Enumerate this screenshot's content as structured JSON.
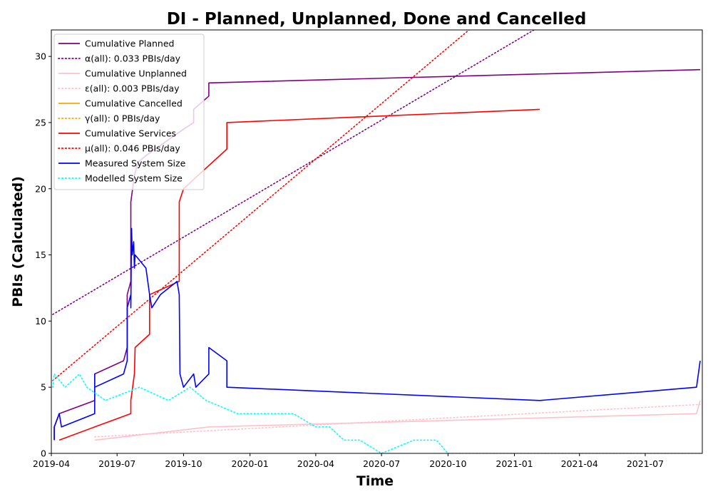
{
  "chart_data": {
    "type": "line",
    "title": "DI - Planned, Unplanned, Done  and Cancelled",
    "xlabel": "Time",
    "ylabel": "PBIs (Calculated)",
    "xlim": [
      "2019-04-01",
      "2021-09-18"
    ],
    "ylim": [
      0,
      32
    ],
    "x_ticks": [
      "2019-04",
      "2019-07",
      "2019-10",
      "2020-01",
      "2020-04",
      "2020-07",
      "2020-10",
      "2021-01",
      "2021-04",
      "2021-07"
    ],
    "y_ticks": [
      0,
      5,
      10,
      15,
      20,
      25,
      30
    ],
    "grid": false,
    "legend_position": "top-left",
    "series": [
      {
        "name": "Cumulative Planned",
        "color": "#800080",
        "style": "solid",
        "points": [
          [
            "2019-04-05",
            1
          ],
          [
            "2019-04-05",
            2
          ],
          [
            "2019-04-12",
            3
          ],
          [
            "2019-05-31",
            4
          ],
          [
            "2019-05-31",
            6
          ],
          [
            "2019-07-10",
            7
          ],
          [
            "2019-07-15",
            8
          ],
          [
            "2019-07-15",
            12
          ],
          [
            "2019-07-20",
            13
          ],
          [
            "2019-07-20",
            19
          ],
          [
            "2019-07-25",
            21
          ],
          [
            "2019-07-30",
            22
          ],
          [
            "2019-08-10",
            22.5
          ],
          [
            "2019-10-01",
            24.5
          ],
          [
            "2019-10-15",
            25
          ],
          [
            "2019-10-15",
            26
          ],
          [
            "2019-11-05",
            27
          ],
          [
            "2019-11-05",
            28
          ],
          [
            "2021-09-15",
            29
          ]
        ]
      },
      {
        "name": "α(all): 0.033 PBIs/day",
        "color": "#800080",
        "style": "dotted",
        "points": [
          [
            "2019-04-03",
            10.5
          ],
          [
            "2021-01-28",
            32
          ]
        ]
      },
      {
        "name": "Cumulative Unplanned",
        "color": "#ffc0cb",
        "style": "solid",
        "points": [
          [
            "2019-05-31",
            1
          ],
          [
            "2019-11-05",
            2
          ],
          [
            "2021-09-10",
            3
          ],
          [
            "2021-09-15",
            4
          ]
        ]
      },
      {
        "name": "ε(all): 0.003 PBIs/day",
        "color": "#ffc0cb",
        "style": "dotted",
        "points": [
          [
            "2019-05-31",
            1.25
          ],
          [
            "2021-09-15",
            3.7
          ]
        ]
      },
      {
        "name": "Cumulative Cancelled",
        "color": "#ffa500",
        "style": "solid",
        "points": []
      },
      {
        "name": "γ(all): 0 PBIs/day",
        "color": "#ffa500",
        "style": "dotted",
        "points": []
      },
      {
        "name": "Cumulative Services",
        "color": "#ff0000",
        "style": "solid",
        "points": [
          [
            "2019-04-12",
            1
          ],
          [
            "2019-05-31",
            2
          ],
          [
            "2019-07-20",
            3
          ],
          [
            "2019-07-20",
            4
          ],
          [
            "2019-07-25",
            6
          ],
          [
            "2019-07-26",
            8
          ],
          [
            "2019-08-15",
            9
          ],
          [
            "2019-08-15",
            12
          ],
          [
            "2019-09-25",
            13
          ],
          [
            "2019-09-25",
            19
          ],
          [
            "2019-10-01",
            20
          ],
          [
            "2019-11-30",
            23
          ],
          [
            "2019-11-30",
            25
          ],
          [
            "2021-02-05",
            26
          ]
        ]
      },
      {
        "name": "μ(all): 0.046 PBIs/day",
        "color": "#ff0000",
        "style": "dotted",
        "points": [
          [
            "2019-04-03",
            5.5
          ],
          [
            "2020-10-30",
            32
          ]
        ]
      },
      {
        "name": "Measured System Size",
        "color": "#0000ff",
        "style": "solid",
        "points": [
          [
            "2019-04-05",
            1
          ],
          [
            "2019-04-05",
            2
          ],
          [
            "2019-04-12",
            3
          ],
          [
            "2019-04-15",
            2
          ],
          [
            "2019-05-31",
            3
          ],
          [
            "2019-05-31",
            6
          ],
          [
            "2019-05-31",
            5
          ],
          [
            "2019-07-10",
            6
          ],
          [
            "2019-07-15",
            7
          ],
          [
            "2019-07-15",
            11
          ],
          [
            "2019-07-20",
            12
          ],
          [
            "2019-07-20",
            11
          ],
          [
            "2019-07-21",
            17
          ],
          [
            "2019-07-22",
            15
          ],
          [
            "2019-07-24",
            16
          ],
          [
            "2019-07-25",
            14
          ],
          [
            "2019-07-26",
            15
          ],
          [
            "2019-08-10",
            14
          ],
          [
            "2019-08-15",
            12
          ],
          [
            "2019-08-18",
            11
          ],
          [
            "2019-08-30",
            12
          ],
          [
            "2019-09-22",
            13
          ],
          [
            "2019-09-25",
            12
          ],
          [
            "2019-09-26",
            6
          ],
          [
            "2019-10-01",
            5
          ],
          [
            "2019-10-15",
            6
          ],
          [
            "2019-10-18",
            5
          ],
          [
            "2019-11-05",
            6
          ],
          [
            "2019-11-05",
            8
          ],
          [
            "2019-11-30",
            7
          ],
          [
            "2019-11-30",
            5
          ],
          [
            "2021-02-05",
            4
          ],
          [
            "2021-09-10",
            5
          ],
          [
            "2021-09-15",
            7
          ]
        ]
      },
      {
        "name": "Modelled System Size",
        "color": "#00ffff",
        "style": "dotted",
        "points": [
          [
            "2019-04-03",
            5
          ],
          [
            "2019-04-05",
            6
          ],
          [
            "2019-04-20",
            5
          ],
          [
            "2019-05-10",
            6
          ],
          [
            "2019-05-20",
            5
          ],
          [
            "2019-06-15",
            4
          ],
          [
            "2019-08-01",
            5
          ],
          [
            "2019-09-10",
            4
          ],
          [
            "2019-10-10",
            5
          ],
          [
            "2019-11-01",
            4
          ],
          [
            "2019-12-15",
            3
          ],
          [
            "2020-02-01",
            3
          ],
          [
            "2020-03-01",
            3
          ],
          [
            "2020-04-01",
            2
          ],
          [
            "2020-04-20",
            2
          ],
          [
            "2020-05-10",
            1
          ],
          [
            "2020-06-01",
            1
          ],
          [
            "2020-07-01",
            0
          ],
          [
            "2020-08-15",
            1
          ],
          [
            "2020-09-15",
            1
          ],
          [
            "2020-10-01",
            0
          ],
          [
            "2020-11-10",
            0
          ],
          [
            "2021-09-15",
            0
          ]
        ]
      }
    ]
  }
}
